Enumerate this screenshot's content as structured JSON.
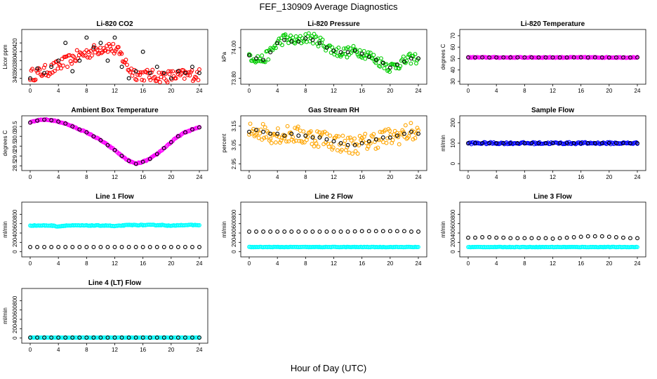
{
  "figure": {
    "title": "FEF_130909  Average Diagnostics",
    "xlabel": "Hour of Day (UTC)"
  },
  "colors": {
    "red": "#ff0000",
    "green": "#00cc00",
    "magenta": "#ff00ff",
    "orange": "#ffa500",
    "blue": "#0000ff",
    "cyan": "#00ffff",
    "black": "#000000"
  },
  "chart_data": [
    {
      "type": "scatter",
      "title": "Li-820 CO2",
      "ylabel": "Licor ppm",
      "x_ticks": [
        "0",
        "4",
        "8",
        "12",
        "16",
        "20",
        "24"
      ],
      "xlim": [
        0,
        24
      ],
      "y_ticks": [
        "340",
        "360",
        "380",
        "400",
        "420"
      ],
      "ylim": [
        333,
        444
      ],
      "x": [
        0,
        1,
        2,
        3,
        4,
        5,
        6,
        7,
        8,
        9,
        10,
        11,
        12,
        13,
        14,
        15,
        16,
        17,
        18,
        19,
        20,
        21,
        22,
        23,
        24
      ],
      "series": [
        {
          "role": "scatter",
          "color": "red",
          "values": [
            348,
            350,
            356,
            360,
            368,
            376,
            385,
            392,
            397,
            402,
            408,
            412,
            405,
            390,
            362,
            350,
            348,
            346,
            345,
            344,
            345,
            346,
            347,
            348,
            348
          ],
          "spread": 14
        },
        {
          "role": "avg",
          "color": "black",
          "values": [
            340,
            362,
            352,
            366,
            380,
            420,
            356,
            380,
            432,
            410,
            420,
            380,
            432,
            366,
            340,
            356,
            400,
            352,
            366,
            352,
            340,
            356,
            352,
            366,
            352
          ]
        }
      ]
    },
    {
      "type": "scatter",
      "title": "Li-820 Pressure",
      "ylabel": "kPa",
      "x_ticks": [
        "0",
        "4",
        "8",
        "12",
        "16",
        "20",
        "24"
      ],
      "xlim": [
        0,
        24
      ],
      "y_ticks": [
        "73.80",
        "74.00"
      ],
      "ylim": [
        73.78,
        74.1
      ],
      "x": [
        0,
        1,
        2,
        3,
        4,
        5,
        6,
        7,
        8,
        9,
        10,
        11,
        12,
        13,
        14,
        15,
        16,
        17,
        18,
        19,
        20,
        21,
        22,
        23,
        24
      ],
      "series": [
        {
          "role": "scatter",
          "color": "green",
          "values": [
            73.95,
            73.93,
            73.92,
            73.97,
            74.03,
            74.06,
            74.05,
            74.04,
            74.07,
            74.06,
            74.04,
            74.01,
            73.98,
            73.97,
            73.97,
            73.98,
            73.97,
            73.95,
            73.92,
            73.9,
            73.87,
            73.89,
            73.91,
            73.93,
            73.93
          ],
          "spread": 0.035
        },
        {
          "role": "avg",
          "color": "black",
          "values": [
            73.95,
            73.93,
            73.92,
            73.97,
            74.03,
            74.05,
            74.04,
            74.04,
            74.06,
            74.05,
            74.03,
            74.0,
            73.98,
            73.97,
            73.97,
            73.98,
            73.96,
            73.94,
            73.92,
            73.9,
            73.87,
            73.89,
            73.91,
            73.93,
            73.93
          ]
        }
      ]
    },
    {
      "type": "scatter",
      "title": "Li-820 Temperature",
      "ylabel": "degrees C",
      "x_ticks": [
        "0",
        "4",
        "8",
        "12",
        "16",
        "20",
        "24"
      ],
      "xlim": [
        0,
        24
      ],
      "y_ticks": [
        "30",
        "40",
        "50",
        "60",
        "70"
      ],
      "ylim": [
        30,
        73
      ],
      "x": [
        0,
        1,
        2,
        3,
        4,
        5,
        6,
        7,
        8,
        9,
        10,
        11,
        12,
        13,
        14,
        15,
        16,
        17,
        18,
        19,
        20,
        21,
        22,
        23,
        24
      ],
      "series": [
        {
          "role": "scatter",
          "color": "magenta",
          "values": [
            51,
            51,
            51,
            51,
            51,
            51,
            51,
            51,
            51,
            51,
            51,
            51,
            51,
            51,
            51,
            51,
            51,
            51,
            51,
            51,
            51,
            51,
            51,
            51,
            51
          ],
          "spread": 0.4
        },
        {
          "role": "avg",
          "color": "black",
          "values": [
            51,
            51,
            51,
            51,
            51,
            51,
            51,
            51,
            51,
            51,
            51,
            51,
            51,
            51,
            51,
            51,
            51,
            51,
            51,
            51,
            51,
            51,
            51,
            51,
            51
          ]
        }
      ]
    },
    {
      "type": "scatter",
      "title": "Ambient Box Temperature",
      "ylabel": "degrees C",
      "x_ticks": [
        "0",
        "4",
        "8",
        "12",
        "16",
        "20",
        "24"
      ],
      "xlim": [
        0,
        24
      ],
      "y_ticks": [
        "28.5",
        "29.0",
        "29.5",
        "30.0",
        "30.5"
      ],
      "ylim": [
        28.4,
        30.9
      ],
      "x": [
        0,
        1,
        2,
        3,
        4,
        5,
        6,
        7,
        8,
        9,
        10,
        11,
        12,
        13,
        14,
        15,
        16,
        17,
        18,
        19,
        20,
        21,
        22,
        23,
        24
      ],
      "series": [
        {
          "role": "scatter",
          "color": "magenta",
          "values": [
            30.7,
            30.8,
            30.85,
            30.82,
            30.75,
            30.65,
            30.5,
            30.35,
            30.2,
            30.0,
            29.8,
            29.55,
            29.3,
            29.0,
            28.75,
            28.6,
            28.7,
            28.85,
            29.1,
            29.4,
            29.7,
            30.0,
            30.2,
            30.35,
            30.45
          ],
          "spread": 0.03
        },
        {
          "role": "avg",
          "color": "black",
          "values": [
            30.7,
            30.8,
            30.85,
            30.82,
            30.75,
            30.65,
            30.5,
            30.35,
            30.2,
            30.0,
            29.8,
            29.55,
            29.3,
            29.0,
            28.75,
            28.6,
            28.7,
            28.85,
            29.1,
            29.4,
            29.7,
            30.0,
            30.2,
            30.35,
            30.45
          ]
        }
      ]
    },
    {
      "type": "scatter",
      "title": "Gas Stream RH",
      "ylabel": "percent",
      "x_ticks": [
        "0",
        "4",
        "8",
        "12",
        "16",
        "20",
        "24"
      ],
      "xlim": [
        0,
        24
      ],
      "y_ticks": [
        "2.95",
        "3.05",
        "3.15"
      ],
      "ylim": [
        2.93,
        3.19
      ],
      "x": [
        0,
        1,
        2,
        3,
        4,
        5,
        6,
        7,
        8,
        9,
        10,
        11,
        12,
        13,
        14,
        15,
        16,
        17,
        18,
        19,
        20,
        21,
        22,
        23,
        24
      ],
      "series": [
        {
          "role": "scatter",
          "color": "orange",
          "values": [
            3.12,
            3.13,
            3.12,
            3.11,
            3.11,
            3.1,
            3.11,
            3.1,
            3.1,
            3.09,
            3.09,
            3.08,
            3.07,
            3.06,
            3.05,
            3.05,
            3.06,
            3.07,
            3.08,
            3.09,
            3.09,
            3.1,
            3.11,
            3.12,
            3.11
          ],
          "spread": 0.05
        },
        {
          "role": "avg",
          "color": "black",
          "values": [
            3.12,
            3.13,
            3.12,
            3.11,
            3.11,
            3.1,
            3.11,
            3.1,
            3.1,
            3.09,
            3.09,
            3.08,
            3.07,
            3.06,
            3.05,
            3.05,
            3.06,
            3.07,
            3.08,
            3.09,
            3.09,
            3.1,
            3.11,
            3.12,
            3.11
          ]
        }
      ]
    },
    {
      "type": "scatter",
      "title": "Sample Flow",
      "ylabel": "ml/min",
      "x_ticks": [
        "0",
        "4",
        "8",
        "12",
        "16",
        "20",
        "24"
      ],
      "xlim": [
        0,
        24
      ],
      "y_ticks": [
        "0",
        "100",
        "200"
      ],
      "ylim": [
        -20,
        220
      ],
      "x": [
        0,
        1,
        2,
        3,
        4,
        5,
        6,
        7,
        8,
        9,
        10,
        11,
        12,
        13,
        14,
        15,
        16,
        17,
        18,
        19,
        20,
        21,
        22,
        23,
        24
      ],
      "series": [
        {
          "role": "scatter",
          "color": "blue",
          "values": [
            100,
            100,
            100,
            100,
            100,
            100,
            100,
            100,
            100,
            100,
            100,
            100,
            100,
            100,
            100,
            100,
            100,
            100,
            100,
            100,
            100,
            100,
            100,
            100,
            100
          ],
          "spread": 5
        },
        {
          "role": "avg",
          "color": "black",
          "values": [
            100,
            100,
            100,
            100,
            100,
            100,
            100,
            100,
            100,
            100,
            100,
            100,
            100,
            100,
            100,
            100,
            100,
            100,
            100,
            100,
            100,
            100,
            100,
            100,
            100
          ]
        }
      ]
    },
    {
      "type": "scatter",
      "title": "Line 1 Flow",
      "ylabel": "ml/min",
      "x_ticks": [
        "0",
        "4",
        "8",
        "12",
        "16",
        "20",
        "24"
      ],
      "xlim": [
        0,
        24
      ],
      "y_ticks": [
        "0",
        "200",
        "400",
        "600",
        "800"
      ],
      "ylim": [
        -50,
        1000
      ],
      "x": [
        0,
        1,
        2,
        3,
        4,
        5,
        6,
        7,
        8,
        9,
        10,
        11,
        12,
        13,
        14,
        15,
        16,
        17,
        18,
        19,
        20,
        21,
        22,
        23,
        24
      ],
      "series": [
        {
          "role": "scatter",
          "color": "cyan",
          "values": [
            560,
            560,
            560,
            560,
            540,
            560,
            560,
            560,
            560,
            560,
            560,
            560,
            545,
            560,
            570,
            570,
            570,
            570,
            570,
            570,
            550,
            570,
            570,
            570,
            570
          ],
          "spread": 8
        },
        {
          "role": "avg",
          "color": "black",
          "values": [
            100,
            100,
            100,
            100,
            100,
            100,
            100,
            100,
            100,
            100,
            100,
            100,
            100,
            100,
            100,
            100,
            100,
            100,
            100,
            100,
            100,
            100,
            100,
            100,
            100
          ]
        }
      ]
    },
    {
      "type": "scatter",
      "title": "Line 2 Flow",
      "ylabel": "ml/min",
      "x_ticks": [
        "0",
        "4",
        "8",
        "12",
        "16",
        "20",
        "24"
      ],
      "xlim": [
        0,
        24
      ],
      "y_ticks": [
        "0",
        "200",
        "400",
        "600",
        "800"
      ],
      "ylim": [
        -50,
        1000
      ],
      "x": [
        0,
        1,
        2,
        3,
        4,
        5,
        6,
        7,
        8,
        9,
        10,
        11,
        12,
        13,
        14,
        15,
        16,
        17,
        18,
        19,
        20,
        21,
        22,
        23,
        24
      ],
      "series": [
        {
          "role": "scatter",
          "color": "cyan",
          "values": [
            100,
            100,
            100,
            100,
            100,
            100,
            100,
            100,
            100,
            100,
            100,
            100,
            100,
            100,
            100,
            100,
            100,
            100,
            100,
            100,
            100,
            100,
            100,
            100,
            100
          ],
          "spread": 5
        },
        {
          "role": "avg",
          "color": "black",
          "values": [
            430,
            430,
            430,
            430,
            430,
            430,
            430,
            430,
            430,
            430,
            430,
            430,
            430,
            430,
            430,
            435,
            440,
            440,
            440,
            440,
            440,
            440,
            440,
            430,
            430
          ]
        }
      ]
    },
    {
      "type": "scatter",
      "title": "Line 3 Flow",
      "ylabel": "ml/min",
      "x_ticks": [
        "0",
        "4",
        "8",
        "12",
        "16",
        "20",
        "24"
      ],
      "xlim": [
        0,
        24
      ],
      "y_ticks": [
        "0",
        "200",
        "400",
        "600",
        "800"
      ],
      "ylim": [
        -50,
        1000
      ],
      "x": [
        0,
        1,
        2,
        3,
        4,
        5,
        6,
        7,
        8,
        9,
        10,
        11,
        12,
        13,
        14,
        15,
        16,
        17,
        18,
        19,
        20,
        21,
        22,
        23,
        24
      ],
      "series": [
        {
          "role": "scatter",
          "color": "cyan",
          "values": [
            100,
            100,
            100,
            100,
            100,
            100,
            100,
            100,
            100,
            100,
            100,
            100,
            100,
            100,
            100,
            100,
            100,
            100,
            100,
            100,
            100,
            100,
            100,
            100,
            100
          ],
          "spread": 5
        },
        {
          "role": "avg",
          "color": "black",
          "values": [
            300,
            300,
            310,
            310,
            300,
            300,
            290,
            290,
            290,
            290,
            290,
            290,
            280,
            290,
            300,
            310,
            320,
            330,
            330,
            330,
            320,
            310,
            300,
            290,
            290
          ]
        }
      ]
    },
    {
      "type": "scatter",
      "title": "Line 4 (LT) Flow",
      "ylabel": "ml/min",
      "x_ticks": [
        "0",
        "4",
        "8",
        "12",
        "16",
        "20",
        "24"
      ],
      "xlim": [
        0,
        24
      ],
      "y_ticks": [
        "0",
        "200",
        "400",
        "600",
        "800"
      ],
      "ylim": [
        -50,
        1000
      ],
      "x": [
        0,
        1,
        2,
        3,
        4,
        5,
        6,
        7,
        8,
        9,
        10,
        11,
        12,
        13,
        14,
        15,
        16,
        17,
        18,
        19,
        20,
        21,
        22,
        23,
        24
      ],
      "series": [
        {
          "role": "scatter",
          "color": "cyan",
          "values": [
            10,
            10,
            10,
            10,
            10,
            10,
            10,
            10,
            10,
            10,
            10,
            10,
            10,
            10,
            10,
            10,
            10,
            10,
            10,
            10,
            10,
            10,
            10,
            10,
            10
          ],
          "spread": 3
        },
        {
          "role": "avg",
          "color": "black",
          "values": [
            10,
            10,
            10,
            10,
            10,
            10,
            10,
            10,
            10,
            10,
            10,
            10,
            10,
            10,
            10,
            10,
            10,
            10,
            10,
            10,
            10,
            10,
            10,
            10,
            10
          ]
        }
      ]
    }
  ]
}
